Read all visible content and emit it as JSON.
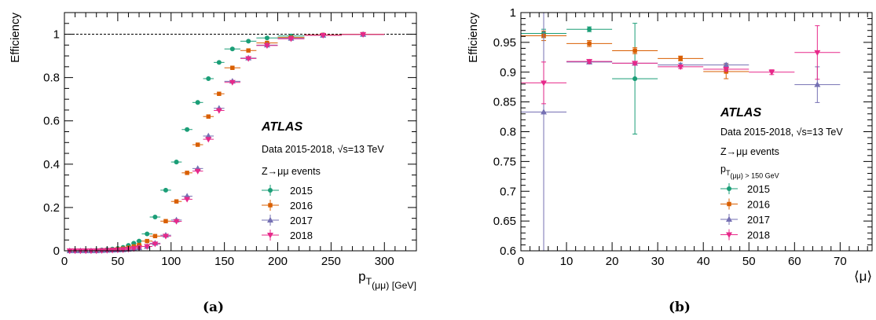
{
  "chart_data": [
    {
      "type": "scatter",
      "panel_label": "(a)",
      "xlabel": "p_T(μμ) [GeV]",
      "ylabel": "Efficiency",
      "xlim": [
        0,
        330
      ],
      "ylim": [
        0,
        1.1
      ],
      "xticks": [
        0,
        50,
        100,
        150,
        200,
        250,
        300
      ],
      "yticks": [
        0,
        0.2,
        0.4,
        0.6,
        0.8,
        1
      ],
      "reference_line": 1.0,
      "annotations": [
        "ATLAS",
        "Data 2015-2018, √s=13 TeV",
        "Z→μμ events"
      ],
      "legend_placement": "center-right",
      "series": [
        {
          "name": "2015",
          "color": "#1b9e77",
          "marker": "circle",
          "x": [
            5,
            10,
            15,
            20,
            25,
            30,
            35,
            40,
            45,
            50,
            55,
            60,
            65,
            70,
            77.5,
            85,
            95,
            105,
            115,
            125,
            135,
            145,
            157.5,
            172.5,
            190,
            212.5,
            242.5,
            280
          ],
          "xerr": [
            2.5,
            2.5,
            2.5,
            2.5,
            2.5,
            2.5,
            2.5,
            2.5,
            2.5,
            2.5,
            2.5,
            2.5,
            2.5,
            2.5,
            5,
            5,
            5,
            5,
            5,
            5,
            5,
            5,
            7.5,
            7.5,
            10,
            12.5,
            17.5,
            20
          ],
          "y": [
            0,
            0,
            0,
            0,
            0,
            0.002,
            0.004,
            0.006,
            0.008,
            0.011,
            0.016,
            0.025,
            0.035,
            0.045,
            0.078,
            0.156,
            0.28,
            0.41,
            0.56,
            0.685,
            0.795,
            0.87,
            0.932,
            0.968,
            0.983,
            0.992,
            0.996,
            0.999
          ]
        },
        {
          "name": "2016",
          "color": "#d95f02",
          "marker": "square",
          "x": [
            5,
            10,
            15,
            20,
            25,
            30,
            35,
            40,
            45,
            50,
            55,
            60,
            65,
            70,
            77.5,
            85,
            95,
            105,
            115,
            125,
            135,
            145,
            157.5,
            172.5,
            190,
            212.5,
            242.5,
            280
          ],
          "xerr": [
            2.5,
            2.5,
            2.5,
            2.5,
            2.5,
            2.5,
            2.5,
            2.5,
            2.5,
            2.5,
            2.5,
            2.5,
            2.5,
            2.5,
            5,
            5,
            5,
            5,
            5,
            5,
            5,
            5,
            7.5,
            7.5,
            10,
            12.5,
            17.5,
            20
          ],
          "y": [
            0,
            0,
            0,
            0,
            0,
            0.001,
            0.002,
            0.003,
            0.005,
            0.007,
            0.01,
            0.014,
            0.02,
            0.027,
            0.045,
            0.068,
            0.137,
            0.228,
            0.36,
            0.49,
            0.62,
            0.725,
            0.845,
            0.925,
            0.96,
            0.985,
            0.997,
            1.0
          ]
        },
        {
          "name": "2017",
          "color": "#7570b3",
          "marker": "triangle-up",
          "x": [
            5,
            10,
            15,
            20,
            25,
            30,
            35,
            40,
            45,
            50,
            55,
            60,
            65,
            70,
            77.5,
            85,
            95,
            105,
            115,
            125,
            135,
            145,
            157.5,
            172.5,
            190,
            212.5,
            242.5,
            280
          ],
          "xerr": [
            2.5,
            2.5,
            2.5,
            2.5,
            2.5,
            2.5,
            2.5,
            2.5,
            2.5,
            2.5,
            2.5,
            2.5,
            2.5,
            2.5,
            5,
            5,
            5,
            5,
            5,
            5,
            5,
            5,
            7.5,
            7.5,
            10,
            12.5,
            17.5,
            20
          ],
          "y": [
            0,
            0,
            0,
            0,
            0,
            0,
            0.001,
            0.002,
            0.003,
            0.004,
            0.005,
            0.007,
            0.01,
            0.014,
            0.02,
            0.035,
            0.072,
            0.142,
            0.252,
            0.38,
            0.53,
            0.658,
            0.783,
            0.89,
            0.95,
            0.981,
            0.995,
            0.999
          ]
        },
        {
          "name": "2018",
          "color": "#e7298a",
          "marker": "triangle-down",
          "x": [
            5,
            10,
            15,
            20,
            25,
            30,
            35,
            40,
            45,
            50,
            55,
            60,
            65,
            70,
            77.5,
            85,
            95,
            105,
            115,
            125,
            135,
            145,
            157.5,
            172.5,
            190,
            212.5,
            242.5,
            280
          ],
          "xerr": [
            2.5,
            2.5,
            2.5,
            2.5,
            2.5,
            2.5,
            2.5,
            2.5,
            2.5,
            2.5,
            2.5,
            2.5,
            2.5,
            2.5,
            5,
            5,
            5,
            5,
            5,
            5,
            5,
            5,
            7.5,
            7.5,
            10,
            12.5,
            17.5,
            20
          ],
          "y": [
            0,
            0,
            0,
            0,
            0,
            0,
            0.001,
            0.002,
            0.003,
            0.004,
            0.005,
            0.007,
            0.01,
            0.014,
            0.02,
            0.032,
            0.068,
            0.136,
            0.238,
            0.368,
            0.515,
            0.648,
            0.778,
            0.888,
            0.948,
            0.979,
            0.995,
            0.999
          ]
        }
      ]
    },
    {
      "type": "scatter",
      "panel_label": "(b)",
      "xlabel": "⟨μ⟩",
      "ylabel": "Efficiency",
      "xlim": [
        0,
        77
      ],
      "ylim": [
        0.6,
        1.0
      ],
      "xticks": [
        0,
        10,
        20,
        30,
        40,
        50,
        60,
        70
      ],
      "yticks": [
        0.6,
        0.65,
        0.7,
        0.75,
        0.8,
        0.85,
        0.9,
        0.95,
        1
      ],
      "annotations": [
        "ATLAS",
        "Data 2015-2018, √s=13 TeV",
        "Z→μμ events",
        "p_T(μμ) > 150 GeV"
      ],
      "legend_placement": "center-right",
      "series": [
        {
          "name": "2015",
          "color": "#1b9e77",
          "marker": "circle",
          "x": [
            5,
            15,
            25
          ],
          "xerr": [
            5,
            5,
            5
          ],
          "y": [
            0.965,
            0.972,
            0.889
          ],
          "yerr": [
            0.007,
            0.004,
            0.093
          ]
        },
        {
          "name": "2016",
          "color": "#d95f02",
          "marker": "square",
          "x": [
            5,
            15,
            25,
            35,
            45
          ],
          "xerr": [
            5,
            5,
            5,
            5,
            5
          ],
          "y": [
            0.961,
            0.948,
            0.936,
            0.923,
            0.901
          ],
          "yerr": [
            0.008,
            0.005,
            0.005,
            0.004,
            0.012
          ]
        },
        {
          "name": "2017",
          "color": "#7570b3",
          "marker": "triangle-up",
          "x": [
            5,
            15,
            25,
            35,
            45,
            65
          ],
          "xerr": [
            5,
            5,
            5,
            5,
            5,
            5
          ],
          "y": [
            0.833,
            0.917,
            0.915,
            0.912,
            0.912,
            0.879
          ],
          "yerr": [
            0.24,
            0.003,
            0.003,
            0.003,
            0.003,
            0.03
          ]
        },
        {
          "name": "2018",
          "color": "#e7298a",
          "marker": "triangle-down",
          "x": [
            5,
            15,
            25,
            35,
            45,
            55,
            65
          ],
          "xerr": [
            5,
            5,
            5,
            5,
            5,
            5,
            5
          ],
          "y": [
            0.882,
            0.918,
            0.915,
            0.909,
            0.905,
            0.9,
            0.933
          ],
          "yerr": [
            0.035,
            0.003,
            0.003,
            0.003,
            0.003,
            0.004,
            0.045
          ]
        }
      ]
    }
  ]
}
